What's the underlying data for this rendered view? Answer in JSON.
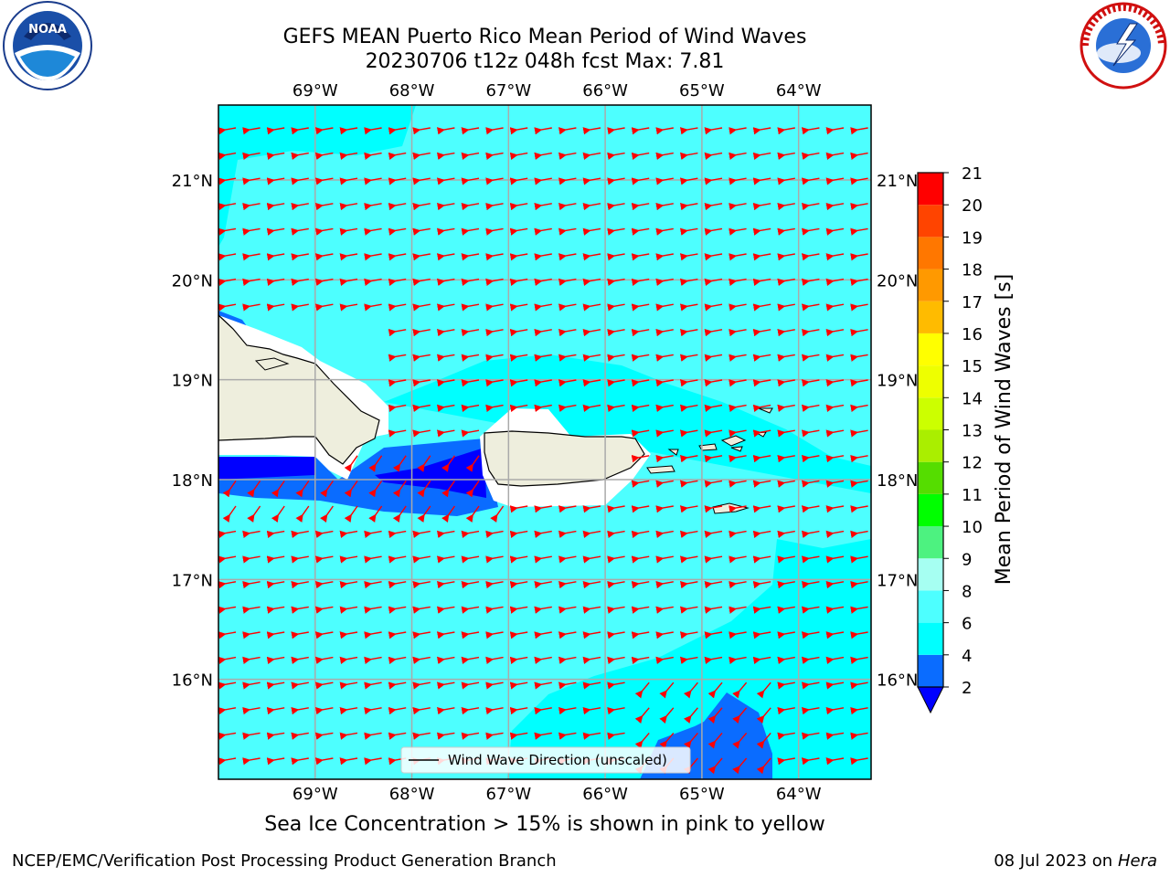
{
  "header": {
    "title_line1": "GEFS MEAN Puerto Rico Mean Period of Wind Waves",
    "title_line2": "20230706 t12z 048h fcst   Max: 7.81"
  },
  "map": {
    "lon_labels": [
      "69°W",
      "68°W",
      "67°W",
      "66°W",
      "65°W",
      "64°W"
    ],
    "lat_labels": [
      "21°N",
      "20°N",
      "19°N",
      "18°N",
      "17°N",
      "16°N"
    ],
    "lon_values": [
      -69,
      -68,
      -67,
      -66,
      -65,
      -64
    ],
    "lat_values": [
      21,
      20,
      19,
      18,
      17,
      16
    ],
    "extent": {
      "lon_min": -70.0,
      "lon_max": -63.25,
      "lat_min": 15.0,
      "lat_max": 21.75
    },
    "legend_label": "Wind Wave Direction (unscaled)",
    "arrow_color": "#ff0000",
    "land_color": "#eeeedd",
    "islands": [
      "Hispaniola",
      "Puerto Rico",
      "Virgin Islands",
      "St. Croix"
    ]
  },
  "colorbar": {
    "label": "Mean Period of Wind Waves [s]",
    "levels": [
      2,
      4,
      6,
      8,
      9,
      10,
      11,
      12,
      13,
      14,
      15,
      16,
      17,
      18,
      19,
      20,
      21
    ],
    "tick_labels": [
      "2",
      "4",
      "6",
      "8",
      "9",
      "10",
      "11",
      "12",
      "13",
      "14",
      "15",
      "16",
      "17",
      "18",
      "19",
      "20",
      "21"
    ],
    "colors": [
      "#0a6cff",
      "#00ffff",
      "#4dffff",
      "#a6fff2",
      "#4df280",
      "#00ff00",
      "#55dd00",
      "#aaee00",
      "#ccff00",
      "#eeff00",
      "#ffff00",
      "#ffbb00",
      "#ff9900",
      "#ff7700",
      "#ff4400",
      "#ff0000"
    ],
    "under_color": "#0000ff"
  },
  "footer": {
    "note": "Sea Ice Concentration > 15% is shown in pink to yellow",
    "left": "NCEP/EMC/Verification Post Processing Product Generation Branch",
    "right_date": "08 Jul 2023 on ",
    "right_host": "Hera"
  }
}
